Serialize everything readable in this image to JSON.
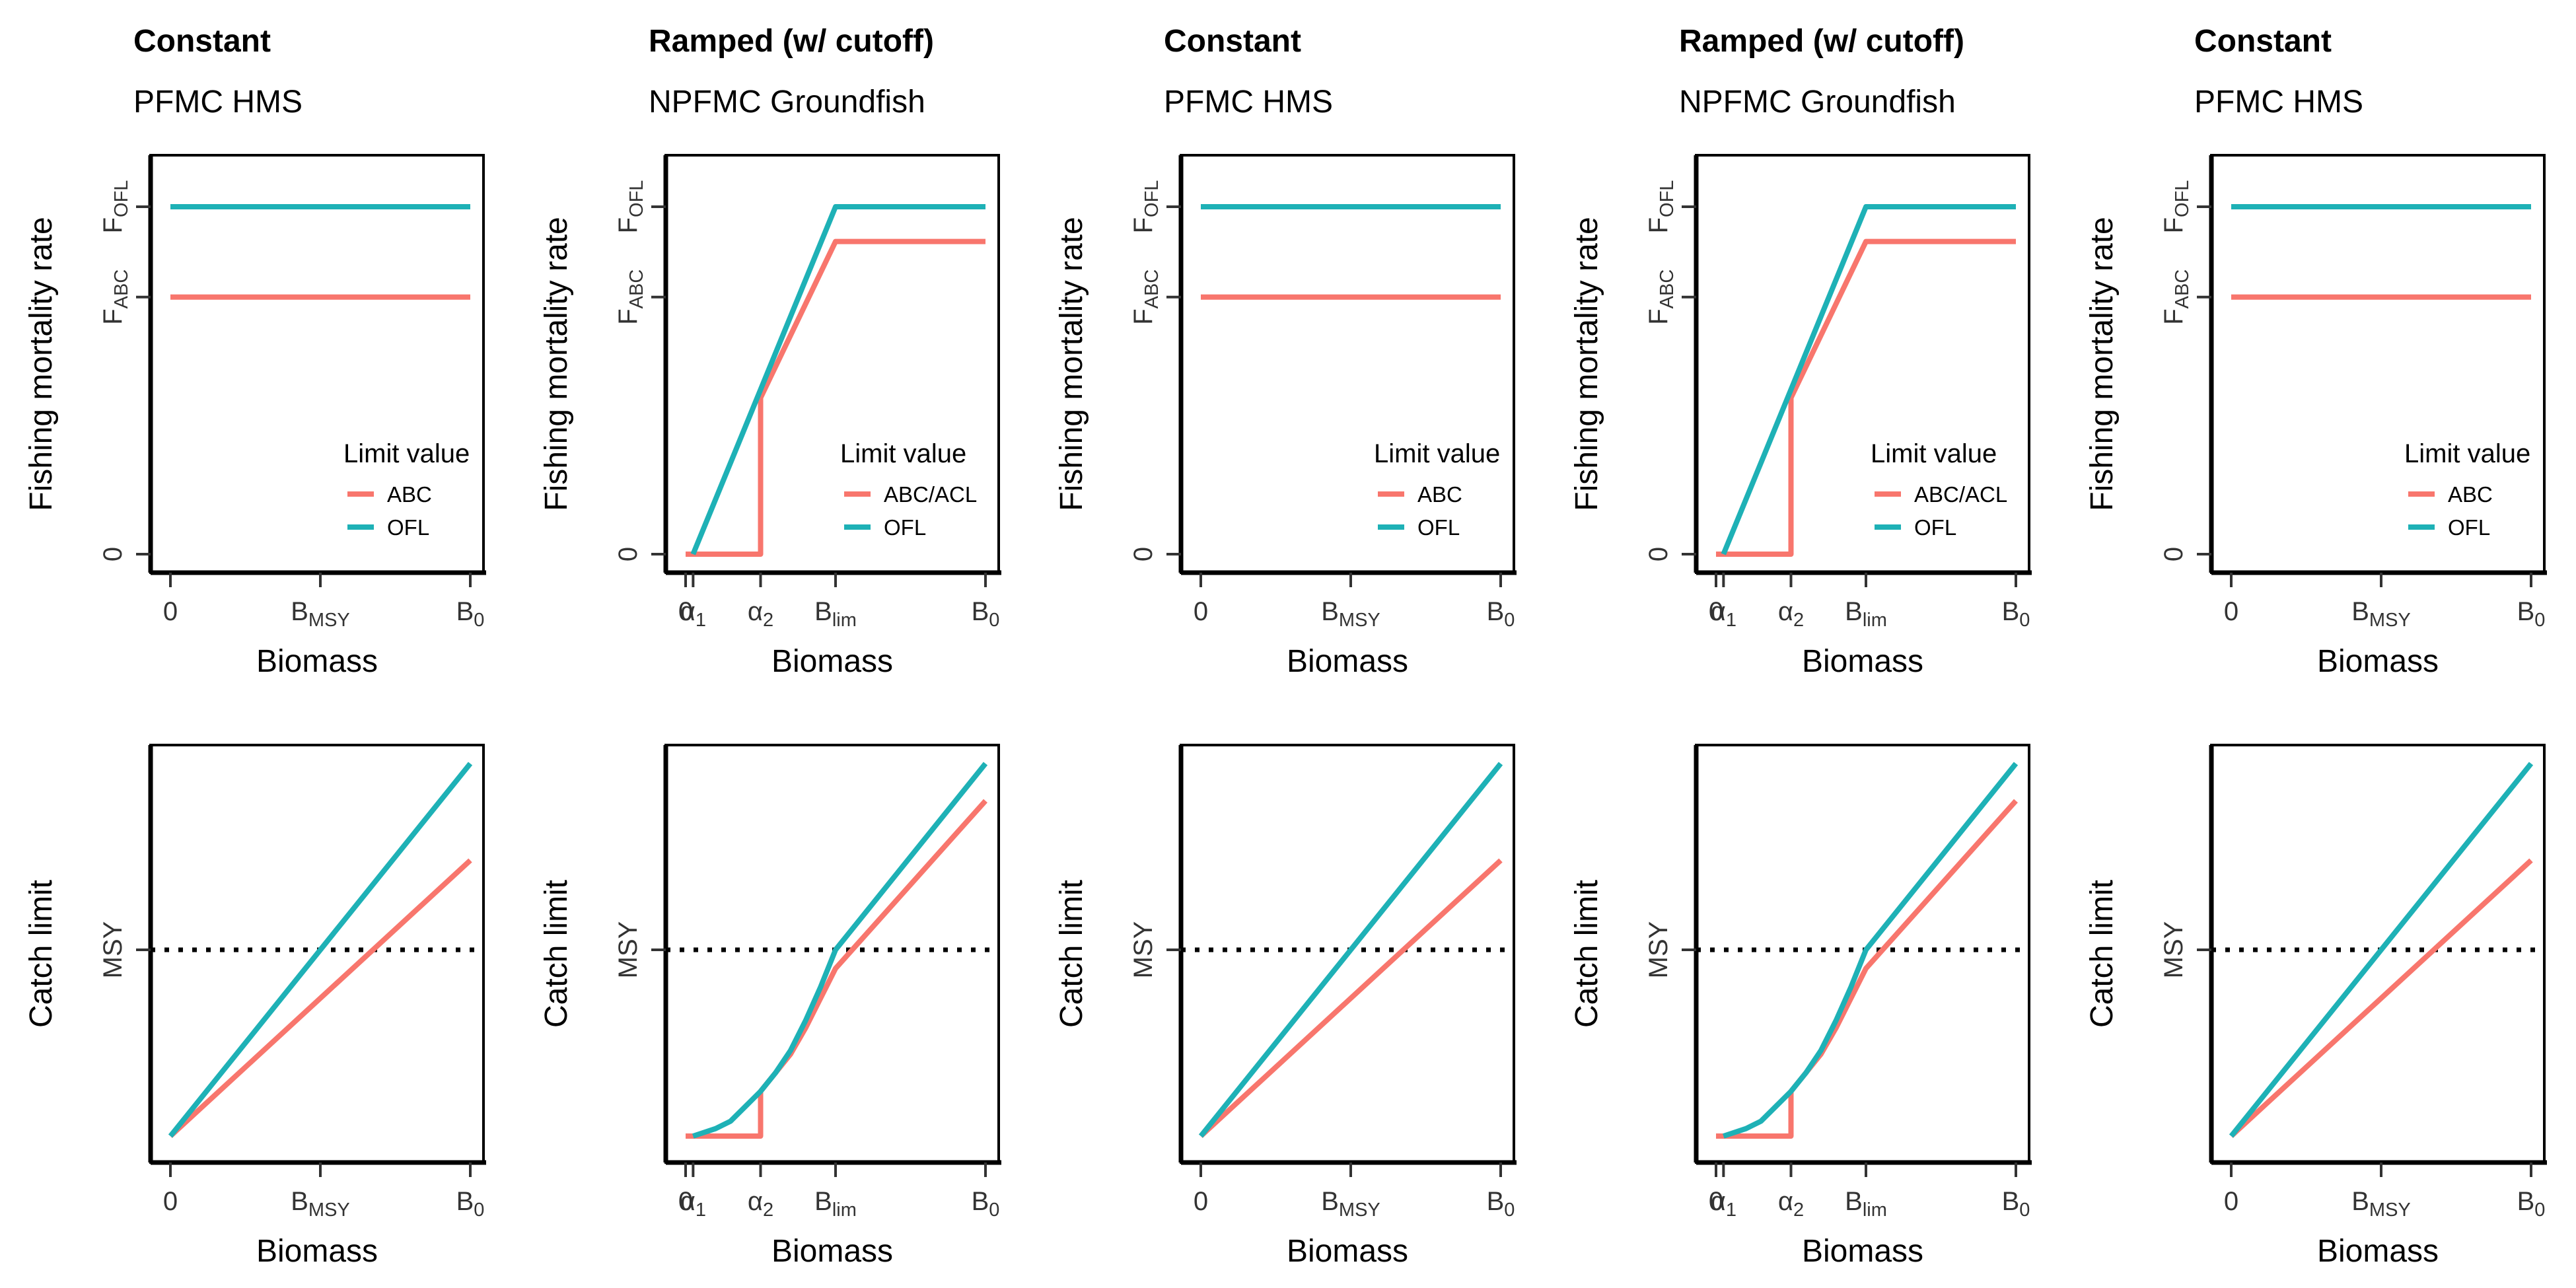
{
  "colors": {
    "abc": "#F8766D",
    "ofl": "#1EB1B6"
  },
  "labels": {
    "x_axis": "Biomass",
    "y_axis_f": "Fishing mortality rate",
    "y_axis_c": "Catch limit",
    "legend_title": "Limit value",
    "ofl": "OFL",
    "ofl_base": "F",
    "ofl_sub": "OFL",
    "abc_base": "F",
    "abc_sub": "ABC",
    "zero": "0",
    "msy": "MSY",
    "bmsy_base": "B",
    "bmsy_sub": "MSY",
    "b0_base": "B",
    "b0_sub": "0",
    "blim_base": "B",
    "blim_sub": "lim",
    "alpha1_base": "α",
    "alpha1_sub": "1",
    "alpha2_base": "α",
    "alpha2_sub": "2"
  },
  "chart_data": [
    {
      "panel": "column-1",
      "title": "Constant",
      "subtitle": "PFMC HMS",
      "type": "line",
      "rule": "constant",
      "legend_abc": "ABC",
      "xlabel": "Biomass",
      "x_ticks": [
        "0",
        "B_MSY",
        "B_0"
      ],
      "top": {
        "ylabel": "Fishing mortality rate",
        "y_ticks": [
          "0",
          "F_ABC",
          "F_OFL"
        ],
        "xlim": [
          0,
          1
        ],
        "ylim": [
          0,
          1
        ],
        "series": [
          {
            "name": "ABC",
            "x": [
              0,
              1
            ],
            "y": [
              0.74,
              0.74
            ]
          },
          {
            "name": "OFL",
            "x": [
              0,
              1
            ],
            "y": [
              1.0,
              1.0
            ]
          }
        ],
        "legend": "bottom-right"
      },
      "bottom": {
        "ylabel": "Catch limit",
        "y_ticks": [
          "MSY"
        ],
        "xlim": [
          0,
          1
        ],
        "ylim": [
          0,
          1
        ],
        "reference_line": {
          "label": "MSY",
          "y": 0.5,
          "style": "dotted"
        },
        "series": [
          {
            "name": "ABC",
            "x": [
              0,
              1
            ],
            "y": [
              0,
              0.74
            ]
          },
          {
            "name": "OFL",
            "x": [
              0,
              1
            ],
            "y": [
              0,
              1.0
            ]
          }
        ]
      }
    },
    {
      "panel": "column-2",
      "title": "Ramped (w/ cutoff)",
      "subtitle": "NPFMC Groundfish",
      "type": "line",
      "rule": "ramped",
      "legend_abc": "ABC/ACL",
      "xlabel": "Biomass",
      "x_ticks": [
        "0",
        "α_1",
        "α_2",
        "B_lim",
        "B_0"
      ],
      "top": {
        "ylabel": "Fishing mortality rate",
        "y_ticks": [
          "0",
          "F_ABC",
          "F_OFL"
        ],
        "xlim": [
          0,
          1
        ],
        "ylim": [
          0,
          1
        ],
        "series": [
          {
            "name": "ABC/ACL",
            "x": [
              0,
              0.25,
              0.25,
              0.5,
              1
            ],
            "y": [
              0,
              0,
              0.45,
              0.9,
              0.9
            ]
          },
          {
            "name": "OFL",
            "x": [
              0.025,
              0.5,
              1
            ],
            "y": [
              0,
              1.0,
              1.0
            ]
          }
        ],
        "legend": "bottom-right"
      },
      "bottom": {
        "ylabel": "Catch limit",
        "y_ticks": [
          "MSY"
        ],
        "xlim": [
          0,
          1
        ],
        "ylim": [
          0,
          1
        ],
        "reference_line": {
          "label": "MSY",
          "y": 0.5,
          "style": "dotted"
        },
        "series": [
          {
            "name": "ABC/ACL",
            "x": [
              0,
              0.25,
              0.25,
              0.3,
              0.35,
              0.4,
              0.45,
              0.5,
              1
            ],
            "y": [
              0,
              0,
              0.12,
              0.17,
              0.22,
              0.29,
              0.37,
              0.45,
              0.9
            ]
          },
          {
            "name": "OFL",
            "x": [
              0.025,
              0.1,
              0.15,
              0.2,
              0.25,
              0.3,
              0.35,
              0.4,
              0.45,
              0.5,
              1
            ],
            "y": [
              0.0,
              0.02,
              0.04,
              0.08,
              0.12,
              0.17,
              0.23,
              0.31,
              0.4,
              0.5,
              1.0
            ]
          }
        ]
      }
    },
    {
      "panel": "column-3",
      "title": "Constant",
      "subtitle": "PFMC HMS",
      "type": "line",
      "rule": "constant",
      "legend_abc": "ABC",
      "xlabel": "Biomass",
      "x_ticks": [
        "0",
        "B_MSY",
        "B_0"
      ],
      "top": {
        "ylabel": "Fishing mortality rate",
        "y_ticks": [
          "0",
          "F_ABC",
          "F_OFL"
        ],
        "xlim": [
          0,
          1
        ],
        "ylim": [
          0,
          1
        ],
        "series": [
          {
            "name": "ABC",
            "x": [
              0,
              1
            ],
            "y": [
              0.74,
              0.74
            ]
          },
          {
            "name": "OFL",
            "x": [
              0,
              1
            ],
            "y": [
              1.0,
              1.0
            ]
          }
        ],
        "legend": "bottom-right"
      },
      "bottom": {
        "ylabel": "Catch limit",
        "y_ticks": [
          "MSY"
        ],
        "xlim": [
          0,
          1
        ],
        "ylim": [
          0,
          1
        ],
        "reference_line": {
          "label": "MSY",
          "y": 0.5,
          "style": "dotted"
        },
        "series": [
          {
            "name": "ABC",
            "x": [
              0,
              1
            ],
            "y": [
              0,
              0.74
            ]
          },
          {
            "name": "OFL",
            "x": [
              0,
              1
            ],
            "y": [
              0,
              1.0
            ]
          }
        ]
      }
    },
    {
      "panel": "column-4",
      "title": "Ramped (w/ cutoff)",
      "subtitle": "NPFMC Groundfish",
      "type": "line",
      "rule": "ramped",
      "legend_abc": "ABC/ACL",
      "xlabel": "Biomass",
      "x_ticks": [
        "0",
        "α_1",
        "α_2",
        "B_lim",
        "B_0"
      ],
      "top": {
        "ylabel": "Fishing mortality rate",
        "y_ticks": [
          "0",
          "F_ABC",
          "F_OFL"
        ],
        "xlim": [
          0,
          1
        ],
        "ylim": [
          0,
          1
        ],
        "series": [
          {
            "name": "ABC/ACL",
            "x": [
              0,
              0.25,
              0.25,
              0.5,
              1
            ],
            "y": [
              0,
              0,
              0.45,
              0.9,
              0.9
            ]
          },
          {
            "name": "OFL",
            "x": [
              0.025,
              0.5,
              1
            ],
            "y": [
              0,
              1.0,
              1.0
            ]
          }
        ],
        "legend": "bottom-right"
      },
      "bottom": {
        "ylabel": "Catch limit",
        "y_ticks": [
          "MSY"
        ],
        "xlim": [
          0,
          1
        ],
        "ylim": [
          0,
          1
        ],
        "reference_line": {
          "label": "MSY",
          "y": 0.5,
          "style": "dotted"
        },
        "series": [
          {
            "name": "ABC/ACL",
            "x": [
              0,
              0.25,
              0.25,
              0.3,
              0.35,
              0.4,
              0.45,
              0.5,
              1
            ],
            "y": [
              0,
              0,
              0.12,
              0.17,
              0.22,
              0.29,
              0.37,
              0.45,
              0.9
            ]
          },
          {
            "name": "OFL",
            "x": [
              0.025,
              0.1,
              0.15,
              0.2,
              0.25,
              0.3,
              0.35,
              0.4,
              0.45,
              0.5,
              1
            ],
            "y": [
              0.0,
              0.02,
              0.04,
              0.08,
              0.12,
              0.17,
              0.23,
              0.31,
              0.4,
              0.5,
              1.0
            ]
          }
        ]
      }
    },
    {
      "panel": "column-5",
      "title": "Constant",
      "subtitle": "PFMC HMS",
      "type": "line",
      "rule": "constant",
      "legend_abc": "ABC",
      "xlabel": "Biomass",
      "x_ticks": [
        "0",
        "B_MSY",
        "B_0"
      ],
      "top": {
        "ylabel": "Fishing mortality rate",
        "y_ticks": [
          "0",
          "F_ABC",
          "F_OFL"
        ],
        "xlim": [
          0,
          1
        ],
        "ylim": [
          0,
          1
        ],
        "series": [
          {
            "name": "ABC",
            "x": [
              0,
              1
            ],
            "y": [
              0.74,
              0.74
            ]
          },
          {
            "name": "OFL",
            "x": [
              0,
              1
            ],
            "y": [
              1.0,
              1.0
            ]
          }
        ],
        "legend": "bottom-right"
      },
      "bottom": {
        "ylabel": "Catch limit",
        "y_ticks": [
          "MSY"
        ],
        "xlim": [
          0,
          1
        ],
        "ylim": [
          0,
          1
        ],
        "reference_line": {
          "label": "MSY",
          "y": 0.5,
          "style": "dotted"
        },
        "series": [
          {
            "name": "ABC",
            "x": [
              0,
              1
            ],
            "y": [
              0,
              0.74
            ]
          },
          {
            "name": "OFL",
            "x": [
              0,
              1
            ],
            "y": [
              0,
              1.0
            ]
          }
        ]
      }
    }
  ]
}
